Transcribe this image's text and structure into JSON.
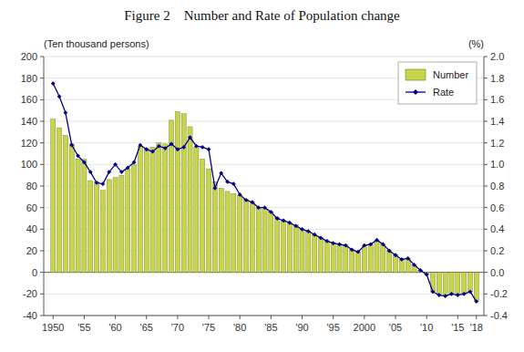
{
  "chart_data": {
    "type": "bar",
    "title": "Figure 2    Number and Rate of Population change",
    "y_label": "(Ten thousand persons)",
    "y2_label": "(%)",
    "x": [
      1950,
      1951,
      1952,
      1953,
      1954,
      1955,
      1956,
      1957,
      1958,
      1959,
      1960,
      1961,
      1962,
      1963,
      1964,
      1965,
      1966,
      1967,
      1968,
      1969,
      1970,
      1971,
      1972,
      1973,
      1974,
      1975,
      1976,
      1977,
      1978,
      1979,
      1980,
      1981,
      1982,
      1983,
      1984,
      1985,
      1986,
      1987,
      1988,
      1989,
      1990,
      1991,
      1992,
      1993,
      1994,
      1995,
      1996,
      1997,
      1998,
      1999,
      2000,
      2001,
      2002,
      2003,
      2004,
      2005,
      2006,
      2007,
      2008,
      2009,
      2010,
      2011,
      2012,
      2013,
      2014,
      2015,
      2016,
      2017,
      2018
    ],
    "series": [
      {
        "name": "Number",
        "type": "bar",
        "color": "#c8d44a",
        "values": [
          142,
          134,
          127,
          119,
          105,
          105,
          85,
          84,
          76,
          86,
          88,
          90,
          96,
          100,
          117,
          115,
          116,
          120,
          119,
          141,
          149,
          147,
          135,
          116,
          105,
          96,
          84,
          78,
          75,
          73,
          71,
          68,
          65,
          60,
          59,
          56,
          51,
          48,
          46,
          44,
          40,
          38,
          35,
          32,
          29,
          27,
          26,
          25,
          21,
          19,
          25,
          26,
          30,
          26,
          20,
          16,
          12,
          13,
          7,
          2,
          -2,
          -18,
          -21,
          -22,
          -20,
          -21,
          -20,
          -18,
          -27
        ]
      },
      {
        "name": "Rate",
        "type": "line",
        "color": "#00008b",
        "marker": "diamond",
        "axis": "y2",
        "values": [
          1.75,
          1.63,
          1.48,
          1.18,
          1.08,
          1.02,
          0.93,
          0.83,
          0.82,
          0.93,
          1.0,
          0.93,
          0.97,
          1.02,
          1.18,
          1.14,
          1.12,
          1.17,
          1.15,
          1.19,
          1.14,
          1.16,
          1.25,
          1.17,
          1.16,
          1.14,
          0.78,
          0.92,
          0.84,
          0.82,
          0.72,
          0.67,
          0.65,
          0.6,
          0.6,
          0.56,
          0.5,
          0.48,
          0.46,
          0.43,
          0.4,
          0.38,
          0.35,
          0.32,
          0.29,
          0.27,
          0.26,
          0.25,
          0.21,
          0.19,
          0.25,
          0.26,
          0.3,
          0.26,
          0.2,
          0.16,
          0.12,
          0.13,
          0.07,
          0.02,
          -0.02,
          -0.18,
          -0.21,
          -0.22,
          -0.2,
          -0.21,
          -0.2,
          -0.18,
          -0.27
        ]
      }
    ],
    "xlim": [
      1948.5,
      2019.2
    ],
    "xticks": [
      1950,
      {
        "value": 1955,
        "label": "'55"
      },
      {
        "value": 1960,
        "label": "'60"
      },
      {
        "value": 1965,
        "label": "'65"
      },
      {
        "value": 1970,
        "label": "'70"
      },
      {
        "value": 1975,
        "label": "'75"
      },
      {
        "value": 1980,
        "label": "'80"
      },
      {
        "value": 1985,
        "label": "'85"
      },
      {
        "value": 1990,
        "label": "'90"
      },
      {
        "value": 1995,
        "label": "'95"
      },
      2000,
      {
        "value": 2005,
        "label": "'05"
      },
      {
        "value": 2010,
        "label": "'10"
      },
      {
        "value": 2015,
        "label": "'15"
      },
      {
        "value": 2018,
        "label": "'18"
      }
    ],
    "ylim": [
      -40,
      200
    ],
    "yticks": [
      -40,
      -20,
      0,
      20,
      40,
      60,
      80,
      100,
      120,
      140,
      160,
      180,
      200
    ],
    "y2lim": [
      -0.4,
      2.0
    ],
    "y2ticks": [
      -0.4,
      -0.2,
      {
        "value": 0.0,
        "label": "0.0"
      },
      0.2,
      0.4,
      0.6,
      0.8,
      {
        "value": 1.0,
        "label": "1.0"
      },
      1.2,
      1.4,
      1.6,
      1.8,
      {
        "value": 2.0,
        "label": "2.0"
      }
    ],
    "grid": true,
    "legend": "upper right"
  }
}
